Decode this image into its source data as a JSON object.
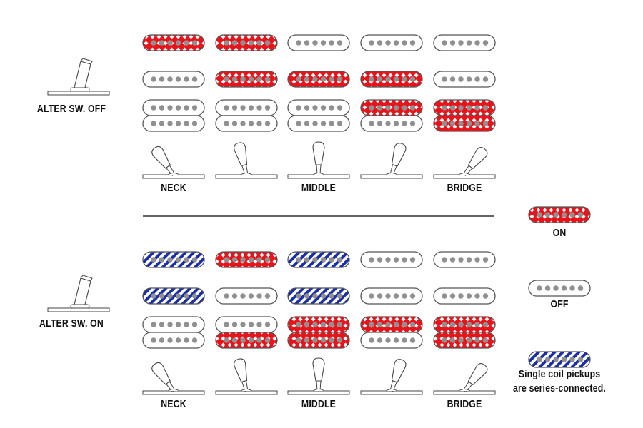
{
  "colors": {
    "on": "#e8141b",
    "series": "#1a2ea8",
    "outline": "#555555",
    "pole": "#909090"
  },
  "positions": [
    "NECK",
    "",
    "MIDDLE",
    "",
    "BRIDGE"
  ],
  "sections": [
    {
      "label": "ALTER SW. OFF",
      "switch_state": "off",
      "pickup_rows": [
        "neck-single",
        "middle-single",
        "humbucker-top-coil",
        "humbucker-bottom-coil"
      ],
      "states": [
        [
          "on",
          "on",
          "off",
          "off",
          "off"
        ],
        [
          "off",
          "on",
          "on",
          "on",
          "off"
        ],
        [
          "off",
          "off",
          "off",
          "on",
          "on"
        ],
        [
          "off",
          "off",
          "off",
          "off",
          "on"
        ]
      ]
    },
    {
      "label": "ALTER SW. ON",
      "switch_state": "on",
      "pickup_rows": [
        "neck-single",
        "middle-single",
        "humbucker-top-coil",
        "humbucker-bottom-coil"
      ],
      "states": [
        [
          "series",
          "on",
          "series",
          "off",
          "off"
        ],
        [
          "series",
          "off",
          "series",
          "off",
          "off"
        ],
        [
          "off",
          "off",
          "on",
          "on",
          "on"
        ],
        [
          "off",
          "on",
          "on",
          "off",
          "on"
        ]
      ]
    }
  ],
  "legend": {
    "on": "ON",
    "off": "OFF",
    "series_line1": "Single coil pickups",
    "series_line2": "are series-connected."
  }
}
